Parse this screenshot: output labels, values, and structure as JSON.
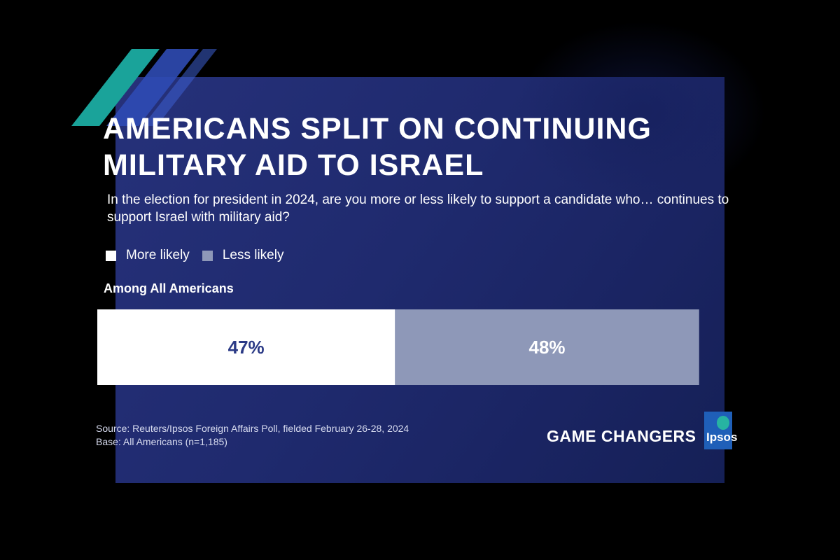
{
  "title_lines": [
    "AMERICANS SPLIT ON CONTINUING",
    "MILITARY AID TO ISRAEL"
  ],
  "question_lines": [
    "In the election for president in 2024, are you more or less likely to support a candidate who… continues to",
    "support Israel with military aid?"
  ],
  "chart_data": {
    "type": "bar",
    "orientation": "horizontal-stacked",
    "categories": [
      "Among All Americans"
    ],
    "series": [
      {
        "name": "More likely",
        "values": [
          47
        ],
        "label": "47%",
        "color": "#ffffff",
        "label_color": "#2b3a86"
      },
      {
        "name": "Less likely",
        "values": [
          48
        ],
        "label": "48%",
        "color": "#8e98b8",
        "label_color": "#ffffff"
      }
    ],
    "unit": "%",
    "xlim": [
      0,
      100
    ],
    "legend_position": "top-left",
    "grid": false
  },
  "source_lines": [
    "Source: Reuters/Ipsos Foreign Affairs Poll, fielded February 26-28, 2024",
    "Base: All Americans (n=1,185)"
  ],
  "brand": {
    "tagline": "GAME CHANGERS",
    "logo_text": "Ipsos"
  },
  "colors": {
    "background": "#1f2a6e",
    "accent_teal": "#1aa39a",
    "accent_blue": "#2f4bb4"
  }
}
